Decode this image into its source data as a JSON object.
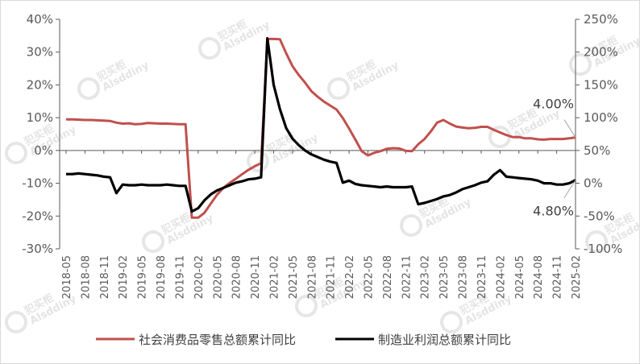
{
  "chart_data": {
    "type": "line",
    "x": [
      "2018-05",
      "2018-06",
      "2018-07",
      "2018-08",
      "2018-09",
      "2018-10",
      "2018-11",
      "2018-12",
      "2019-01",
      "2019-02",
      "2019-03",
      "2019-04",
      "2019-05",
      "2019-06",
      "2019-07",
      "2019-08",
      "2019-09",
      "2019-10",
      "2019-11",
      "2019-12",
      "2020-01",
      "2020-02",
      "2020-03",
      "2020-04",
      "2020-05",
      "2020-06",
      "2020-07",
      "2020-08",
      "2020-09",
      "2020-10",
      "2020-11",
      "2020-12",
      "2021-01",
      "2021-02",
      "2021-03",
      "2021-04",
      "2021-05",
      "2021-06",
      "2021-07",
      "2021-08",
      "2021-09",
      "2021-10",
      "2021-11",
      "2021-12",
      "2022-01",
      "2022-02",
      "2022-03",
      "2022-04",
      "2022-05",
      "2022-06",
      "2022-07",
      "2022-08",
      "2022-09",
      "2022-10",
      "2022-11",
      "2022-12",
      "2023-01",
      "2023-02",
      "2023-03",
      "2023-04",
      "2023-05",
      "2023-06",
      "2023-07",
      "2023-08",
      "2023-09",
      "2023-10",
      "2023-11",
      "2023-12",
      "2024-01",
      "2024-02",
      "2024-03",
      "2024-04",
      "2024-05",
      "2024-06",
      "2024-07",
      "2024-08",
      "2024-09",
      "2024-10",
      "2024-11",
      "2024-12",
      "2025-01",
      "2025-02"
    ],
    "x_tick_labels": [
      "2018-05",
      "2018-08",
      "2018-11",
      "2019-02",
      "2019-05",
      "2019-08",
      "2019-11",
      "2020-02",
      "2020-05",
      "2020-08",
      "2020-11",
      "2021-02",
      "2021-05",
      "2021-08",
      "2021-11",
      "2022-02",
      "2022-05",
      "2022-08",
      "2022-11",
      "2023-02",
      "2023-05",
      "2023-08",
      "2023-11",
      "2024-02",
      "2024-05",
      "2024-08",
      "2024-11",
      "2025-02"
    ],
    "y_left": {
      "ticks": [
        "40%",
        "30%",
        "20%",
        "10%",
        "0%",
        "-10%",
        "-20%",
        "-30%"
      ],
      "range": [
        -30,
        40
      ],
      "unit": "%"
    },
    "y_right": {
      "ticks": [
        "250%",
        "200%",
        "150%",
        "100%",
        "50%",
        "0%",
        "-50%",
        "-100%"
      ],
      "range": [
        -100,
        250
      ],
      "unit": "%"
    },
    "series": [
      {
        "name": "社会消费品零售总额累计同比",
        "axis": "left",
        "color": "#c0504d",
        "values": [
          9.5,
          9.5,
          9.4,
          9.3,
          9.3,
          9.2,
          9.1,
          9.0,
          8.5,
          8.2,
          8.3,
          8.0,
          8.1,
          8.4,
          8.3,
          8.2,
          8.2,
          8.1,
          8.0,
          8.0,
          -20.5,
          -20.5,
          -19.0,
          -16.2,
          -13.5,
          -11.4,
          -9.9,
          -8.6,
          -7.2,
          -5.9,
          -4.8,
          -3.9,
          34.0,
          34.0,
          33.9,
          29.6,
          25.7,
          23.0,
          20.7,
          18.1,
          16.4,
          14.9,
          13.7,
          12.5,
          9.9,
          6.7,
          3.3,
          -0.2,
          -1.5,
          -0.7,
          -0.2,
          0.5,
          0.7,
          0.6,
          -0.1,
          -0.2,
          1.9,
          3.5,
          5.8,
          8.5,
          9.3,
          8.2,
          7.3,
          7.0,
          6.8,
          6.9,
          7.2,
          7.2,
          6.3,
          5.5,
          4.7,
          4.1,
          4.1,
          3.7,
          3.7,
          3.4,
          3.3,
          3.5,
          3.5,
          3.5,
          3.7,
          4.0
        ]
      },
      {
        "name": "制造业利润总额累计同比",
        "axis": "right",
        "color": "#000000",
        "values": [
          14,
          14,
          15,
          14,
          13,
          12,
          10,
          9,
          -15,
          -2,
          -3,
          -3,
          -2,
          -3,
          -3,
          -3,
          -2,
          -3,
          -4,
          -4,
          -43,
          -38,
          -26,
          -17,
          -11,
          -7,
          -3,
          1,
          3,
          6,
          7,
          9,
          221,
          150,
          113,
          84,
          68,
          58,
          50,
          44,
          40,
          36,
          33,
          31,
          1,
          4,
          -1,
          -3,
          -4,
          -5,
          -6,
          -5,
          -6,
          -6,
          -6,
          -5,
          -32,
          -30,
          -27,
          -24,
          -20,
          -18,
          -14,
          -9,
          -6,
          -3,
          1,
          3,
          13,
          20,
          10,
          9,
          8,
          7,
          6,
          4,
          0,
          0,
          -2,
          -2,
          0,
          4.8
        ]
      }
    ],
    "annotations": [
      {
        "text": "4.00%",
        "series": "社会消费品零售总额累计同比",
        "at": "2025-02"
      },
      {
        "text": "4.80%",
        "series": "制造业利润总额累计同比",
        "at": "2025-02"
      }
    ],
    "legend": {
      "position": "bottom"
    },
    "grid": false
  },
  "watermark": {
    "brand_cn": "犯买柜",
    "brand_en": "Alsddiny"
  }
}
